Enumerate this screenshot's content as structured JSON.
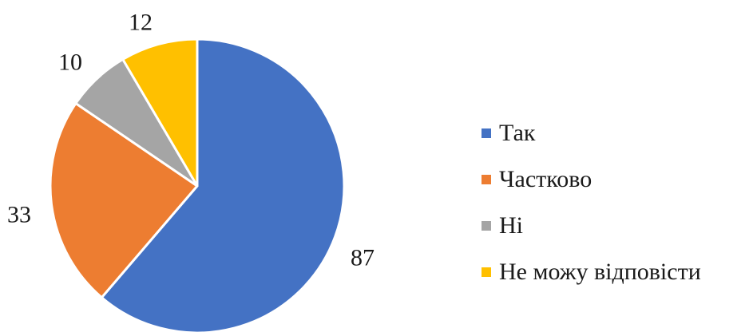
{
  "chart_data": {
    "type": "pie",
    "title": "",
    "categories": [
      "Так",
      "Частково",
      "Ні",
      "Не можу відповісти"
    ],
    "values": [
      87,
      33,
      10,
      12
    ],
    "colors": [
      "#4472C4",
      "#ED7D31",
      "#A5A5A5",
      "#FFC000"
    ],
    "data_labels": [
      "87",
      "33",
      "10",
      "12"
    ],
    "start_angle_deg": 0,
    "direction": "clockwise",
    "legend_position": "right"
  }
}
